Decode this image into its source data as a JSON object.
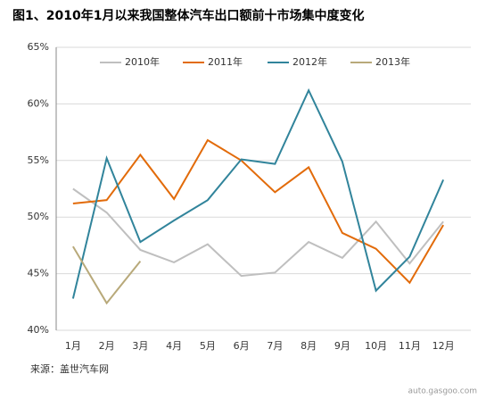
{
  "chart_data": {
    "type": "line",
    "title": "图1、2010年1月以来我国整体汽车出口额前十市场集中度变化",
    "source": "来源：盖世汽车网",
    "watermark": "auto.gasgoo.com",
    "categories": [
      "1月",
      "2月",
      "3月",
      "4月",
      "5月",
      "6月",
      "7月",
      "8月",
      "9月",
      "10月",
      "11月",
      "12月"
    ],
    "series": [
      {
        "name": "2010年",
        "color": "#bfbfbf",
        "values": [
          52.5,
          50.4,
          47.1,
          46.0,
          47.6,
          44.8,
          45.1,
          47.8,
          46.4,
          49.6,
          45.9,
          49.6
        ]
      },
      {
        "name": "2011年",
        "color": "#e26b0a",
        "values": [
          51.2,
          51.5,
          55.5,
          51.6,
          56.8,
          55.0,
          52.2,
          54.4,
          48.6,
          47.2,
          44.2,
          49.3
        ]
      },
      {
        "name": "2012年",
        "color": "#31849b",
        "values": [
          42.8,
          55.2,
          47.8,
          49.7,
          51.5,
          55.1,
          54.7,
          61.2,
          54.9,
          43.5,
          46.5,
          53.3
        ]
      },
      {
        "name": "2013年",
        "color": "#b8a97a",
        "values": [
          47.4,
          42.4,
          46.1,
          null,
          null,
          null,
          null,
          null,
          null,
          null,
          null,
          null
        ]
      }
    ],
    "ylim": [
      40,
      65
    ],
    "yticks": [
      {
        "value": 40,
        "label": "40%"
      },
      {
        "value": 45,
        "label": "45%"
      },
      {
        "value": 50,
        "label": "50%"
      },
      {
        "value": 55,
        "label": "55%"
      },
      {
        "value": 60,
        "label": "60%"
      },
      {
        "value": 65,
        "label": "65%"
      }
    ],
    "grid": true,
    "legend": "top"
  }
}
